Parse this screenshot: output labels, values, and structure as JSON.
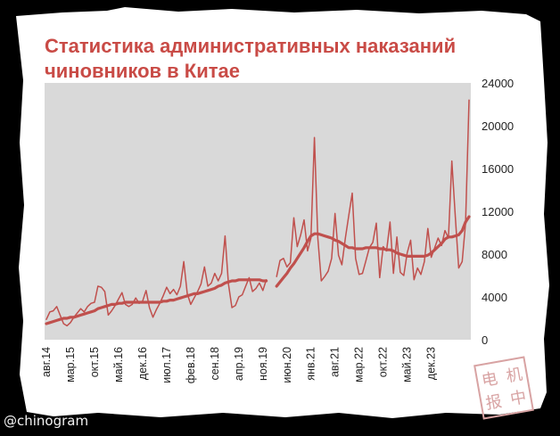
{
  "title_lines": [
    "Статистика административных наказаний",
    "чиновников в Китае"
  ],
  "watermark": "@chinogram",
  "stamp_glyphs": [
    "电",
    "报",
    "机",
    "中"
  ],
  "colors": {
    "line": "#c0504d",
    "text": "#c94b46",
    "plot_bg": "#d9d9d9",
    "paper": "#ffffff",
    "frame": "#000000"
  },
  "chart_data": {
    "type": "line",
    "title": "Статистика административных наказаний чиновников в Китае",
    "xlabel": "",
    "ylabel": "",
    "ylim": [
      0,
      24000
    ],
    "y_ticks": [
      0,
      4000,
      8000,
      12000,
      16000,
      20000,
      24000
    ],
    "y_axis_side": "right",
    "grid": false,
    "legend": "none",
    "x_tick_labels": [
      "авг.14",
      "мар.15",
      "окт.15",
      "май.16",
      "дек.16",
      "июл.17",
      "фев.18",
      "сен.18",
      "апр.19",
      "ноя.19",
      "июн.20",
      "янв.21",
      "авг.21",
      "мар.22",
      "окт.22",
      "май.23",
      "дек.23"
    ],
    "x_tick_step_months": 7,
    "gap_after_month_index": 64,
    "series": [
      {
        "style": "thin",
        "values": [
          1900,
          2600,
          2700,
          3100,
          2300,
          1500,
          1300,
          1600,
          2100,
          2500,
          2900,
          2600,
          3100,
          3400,
          3500,
          5000,
          4900,
          4500,
          2300,
          2700,
          3200,
          3800,
          4400,
          3300,
          3100,
          3300,
          3900,
          3400,
          3600,
          4600,
          3000,
          2100,
          2800,
          3400,
          4100,
          4900,
          4300,
          4700,
          4200,
          5000,
          7300,
          4300,
          3300,
          3900,
          4500,
          5200,
          6800,
          5000,
          5300,
          6200,
          5500,
          6200,
          9700,
          5200,
          3000,
          3200,
          4000,
          4200,
          5000,
          5800,
          4500,
          4800,
          5300,
          4600,
          5600,
          null,
          null,
          5900,
          7400,
          7600,
          6800,
          7200,
          11400,
          8700,
          9800,
          11200,
          8300,
          9500,
          18900,
          9500,
          5500,
          5900,
          6400,
          7600,
          11800,
          7900,
          7000,
          9500,
          11600,
          13700,
          7600,
          6100,
          6200,
          7400,
          8600,
          9100,
          10900,
          5800,
          8700,
          8300,
          11000,
          6200,
          9600,
          6300,
          6000,
          8100,
          9300,
          5600,
          6700,
          6100,
          7300,
          10400,
          7700,
          8600,
          9500,
          8800,
          10200,
          9500,
          16700,
          11500,
          6700,
          7300,
          10900,
          22400
        ]
      },
      {
        "style": "thick",
        "values": [
          1500,
          1600,
          1700,
          1800,
          1900,
          2000,
          2000,
          2100,
          2100,
          2200,
          2300,
          2400,
          2500,
          2600,
          2700,
          2900,
          3000,
          3100,
          3200,
          3300,
          3300,
          3400,
          3400,
          3500,
          3500,
          3500,
          3500,
          3500,
          3500,
          3500,
          3500,
          3500,
          3500,
          3500,
          3600,
          3600,
          3700,
          3700,
          3800,
          3900,
          4000,
          4100,
          4200,
          4300,
          4300,
          4400,
          4500,
          4600,
          4700,
          4800,
          5000,
          5100,
          5300,
          5400,
          5500,
          5500,
          5600,
          5600,
          5600,
          5600,
          5600,
          5600,
          5600,
          5500,
          5500,
          null,
          null,
          5000,
          5400,
          5800,
          6200,
          6700,
          7100,
          7600,
          8100,
          8600,
          9200,
          9700,
          9900,
          9900,
          9800,
          9700,
          9600,
          9500,
          9300,
          9200,
          9000,
          8800,
          8600,
          8600,
          8500,
          8500,
          8500,
          8600,
          8600,
          8600,
          8600,
          8500,
          8500,
          8400,
          8400,
          8300,
          8100,
          8000,
          7900,
          7800,
          7800,
          7800,
          7800,
          7800,
          7800,
          7900,
          8100,
          8400,
          8700,
          9000,
          9400,
          9600,
          9600,
          9700,
          9800,
          10200,
          11000,
          11500
        ]
      }
    ]
  }
}
